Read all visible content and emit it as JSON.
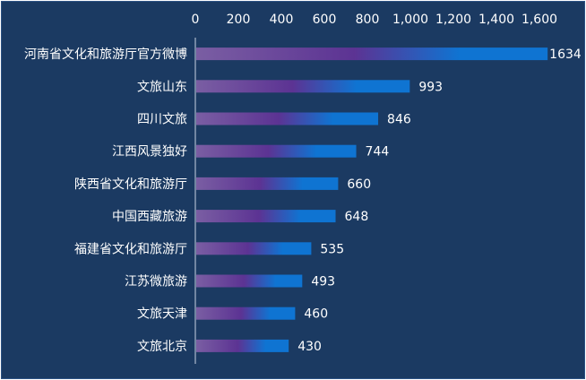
{
  "chart_data": {
    "type": "bar",
    "orientation": "horizontal",
    "title": "",
    "xlabel": "",
    "ylabel": "",
    "categories": [
      "河南省文化和旅游厅官方微博",
      "文旅山东",
      "四川文旅",
      "江西风景独好",
      "陕西省文化和旅游厅",
      "中国西藏旅游",
      "福建省文化和旅游厅",
      "江苏微旅游",
      "文旅天津",
      "文旅北京"
    ],
    "values": [
      1634,
      993,
      846,
      744,
      660,
      648,
      535,
      493,
      460,
      430
    ],
    "value_labels": [
      "1634",
      "993",
      "846",
      "744",
      "660",
      "648",
      "535",
      "493",
      "460",
      "430"
    ],
    "xlim": [
      0,
      1600
    ],
    "x_ticks": [
      0,
      200,
      400,
      600,
      800,
      1000,
      1200,
      1400,
      1600
    ],
    "x_tick_labels": [
      "0",
      "200",
      "400",
      "600",
      "800",
      "1,000",
      "1,200",
      "1,400",
      "1,600"
    ],
    "axis_position": "top",
    "grid": false,
    "legend": "none"
  },
  "colors": {
    "background": "#1b3a62",
    "bar_start": "#7a5ea3",
    "bar_mid": "#5c3393",
    "bar_end": "#0f74d2",
    "text": "#ffffff",
    "axis": "#c9d3e3"
  }
}
